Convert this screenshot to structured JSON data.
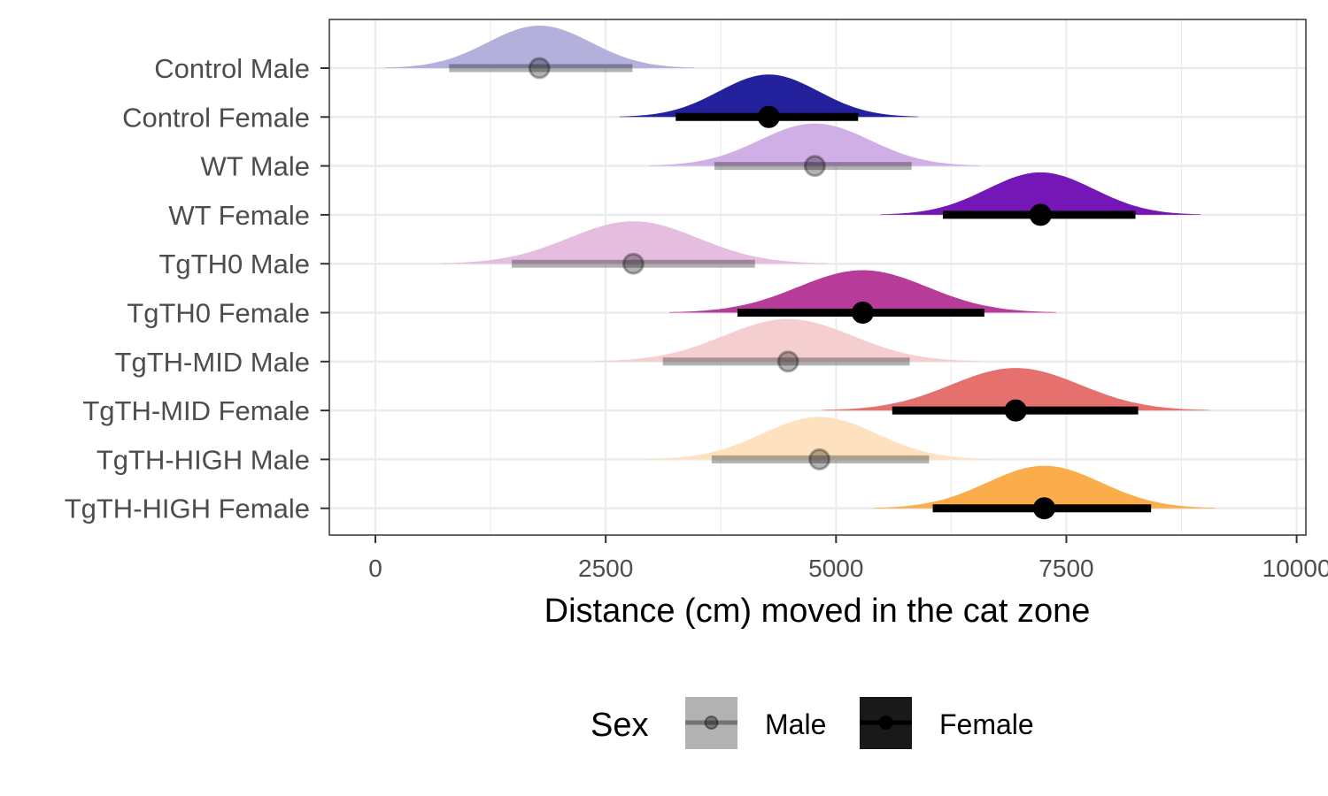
{
  "chart_data": {
    "type": "halfeye",
    "xlabel": "Distance (cm) moved in the cat zone",
    "xlim": [
      -500,
      10100
    ],
    "xticks": [
      0,
      2500,
      5000,
      7500,
      10000
    ],
    "xtick_labels": [
      "0",
      "2500",
      "5000",
      "7500",
      "10000"
    ],
    "grid": true,
    "legend": {
      "title": "Sex",
      "position": "bottom",
      "entries": [
        {
          "label": "Male",
          "color": "#000000",
          "alpha": 0.3
        },
        {
          "label": "Female",
          "color": "#000000",
          "alpha": 1.0
        }
      ]
    },
    "groups": [
      {
        "label": "Control Male",
        "sex": "Male",
        "color": "#b3b0dc",
        "point": 1780,
        "interval": [
          800,
          2790
        ],
        "spread": 560
      },
      {
        "label": "Control Female",
        "sex": "Female",
        "color": "#22209a",
        "point": 4270,
        "interval": [
          3260,
          5240
        ],
        "spread": 540
      },
      {
        "label": "WT Male",
        "sex": "Male",
        "color": "#d0aee6",
        "point": 4770,
        "interval": [
          3680,
          5820
        ],
        "spread": 600
      },
      {
        "label": "WT Female",
        "sex": "Female",
        "color": "#7517b6",
        "point": 7220,
        "interval": [
          6160,
          8250
        ],
        "spread": 580
      },
      {
        "label": "TgTH0 Male",
        "sex": "Male",
        "color": "#e5bddf",
        "point": 2800,
        "interval": [
          1480,
          4120
        ],
        "spread": 700
      },
      {
        "label": "TgTH0 Female",
        "sex": "Female",
        "color": "#b73b99",
        "point": 5290,
        "interval": [
          3930,
          6610
        ],
        "spread": 700
      },
      {
        "label": "TgTH-MID Male",
        "sex": "Male",
        "color": "#f5cfcf",
        "point": 4480,
        "interval": [
          3120,
          5800
        ],
        "spread": 700
      },
      {
        "label": "TgTH-MID Female",
        "sex": "Female",
        "color": "#e5706d",
        "point": 6950,
        "interval": [
          5610,
          8280
        ],
        "spread": 700
      },
      {
        "label": "TgTH-HIGH Male",
        "sex": "Male",
        "color": "#fee2c0",
        "point": 4820,
        "interval": [
          3650,
          6010
        ],
        "spread": 620
      },
      {
        "label": "TgTH-HIGH Female",
        "sex": "Female",
        "color": "#fbad4b",
        "point": 7260,
        "interval": [
          6050,
          8420
        ],
        "spread": 620
      }
    ]
  }
}
